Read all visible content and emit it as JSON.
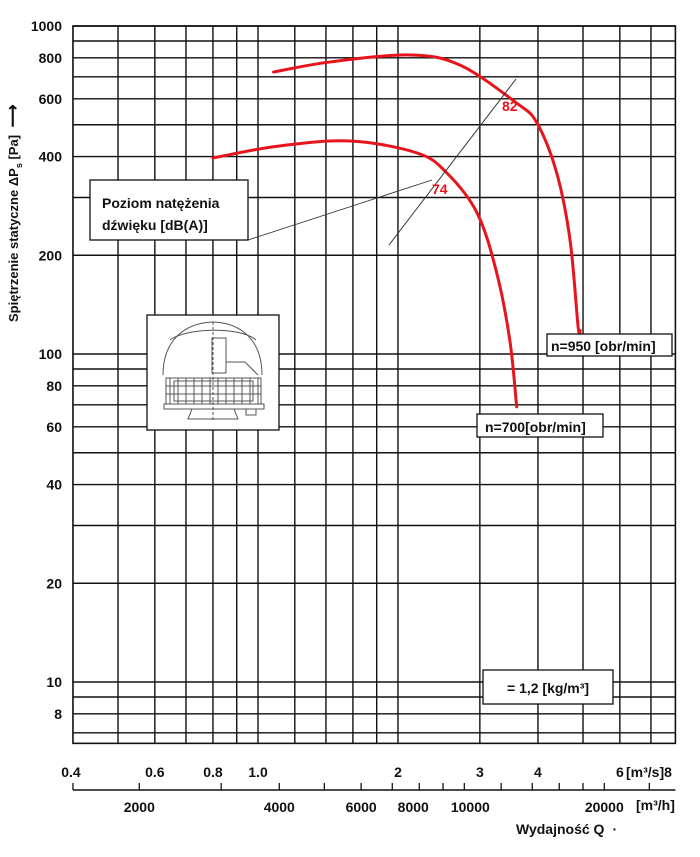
{
  "chart_data": {
    "type": "line",
    "x_scale": "log",
    "y_scale": "log",
    "xlim": [
      0.4,
      7.9
    ],
    "ylim": [
      6.5,
      1000
    ],
    "grid": true,
    "ylabel": "Spiętrzenie statyczne ΔP",
    "ylabel_sub": "s",
    "ylabel_unit": " [Pa]",
    "ylabel_arrow": "⟶",
    "xlabel": "Wydajność Q",
    "xlabel_suffix": "·",
    "x_unit_primary": "[m³/s]",
    "x_unit_primary_cut": "8",
    "x_unit_secondary": "[m³/h]",
    "y_ticks": [
      {
        "v": 1000,
        "label": "1000"
      },
      {
        "v": 800,
        "label": "800"
      },
      {
        "v": 600,
        "label": "600"
      },
      {
        "v": 400,
        "label": "400"
      },
      {
        "v": 200,
        "label": "200"
      },
      {
        "v": 100,
        "label": "100"
      },
      {
        "v": 80,
        "label": "80"
      },
      {
        "v": 60,
        "label": "60"
      },
      {
        "v": 40,
        "label": "40"
      },
      {
        "v": 20,
        "label": "20"
      },
      {
        "v": 10,
        "label": "10"
      },
      {
        "v": 8,
        "label": "8"
      }
    ],
    "y_grid": [
      7,
      8,
      9,
      10,
      20,
      30,
      40,
      50,
      60,
      70,
      80,
      90,
      100,
      200,
      300,
      400,
      500,
      600,
      700,
      800,
      900,
      1000
    ],
    "x_grid": [
      0.5,
      0.6,
      0.7,
      0.8,
      0.9,
      1.0,
      1.2,
      1.4,
      1.6,
      1.8,
      2,
      3,
      4,
      5,
      6,
      7
    ],
    "x_ticks": [
      {
        "v": 0.4,
        "label": "0.4"
      },
      {
        "v": 0.6,
        "label": "0.6"
      },
      {
        "v": 0.8,
        "label": "0.8"
      },
      {
        "v": 1.0,
        "label": "1.0"
      },
      {
        "v": 2,
        "label": "2"
      },
      {
        "v": 3,
        "label": "3"
      },
      {
        "v": 4,
        "label": "4"
      },
      {
        "v": 6,
        "label": "6"
      }
    ],
    "x2_ticks": [
      1440,
      2000,
      3000,
      4000,
      5000,
      6000,
      7000,
      8000,
      9000,
      10000,
      12000,
      14000,
      16000,
      18000,
      20000,
      25000
    ],
    "x2_labels": [
      {
        "v": 2000,
        "label": "2000"
      },
      {
        "v": 4000,
        "label": "4000"
      },
      {
        "v": 6000,
        "label": "6000"
      },
      {
        "v": 8000,
        "label": "8000"
      },
      {
        "v": 10000,
        "label": "10000"
      },
      {
        "v": 20000,
        "label": "20000"
      }
    ],
    "series": [
      {
        "name": "n=950 [obr/min]",
        "color": "#e8141c",
        "x": [
          1.08,
          1.43,
          2.12,
          2.72,
          3.6,
          3.98,
          4.39,
          4.69,
          4.88,
          4.93
        ],
        "y": [
          724,
          777,
          816,
          760,
          582,
          506,
          356,
          222,
          121,
          118
        ]
      },
      {
        "name": "n=700[obr/min]",
        "color": "#e8141c",
        "x": [
          0.8,
          1.1,
          1.58,
          2.2,
          2.55,
          2.96,
          3.26,
          3.48,
          3.6
        ],
        "y": [
          396,
          430,
          446,
          410,
          356,
          269,
          177,
          110,
          69
        ]
      }
    ],
    "annotations": {
      "noise_box": [
        "Poziom natężenia",
        "dźwięku [dB(A)]"
      ],
      "noise_levels": [
        {
          "label": "82",
          "color": "#e8141c"
        },
        {
          "label": "74",
          "color": "#e8141c"
        }
      ],
      "density": "= 1,2 [kg/m³]"
    }
  }
}
